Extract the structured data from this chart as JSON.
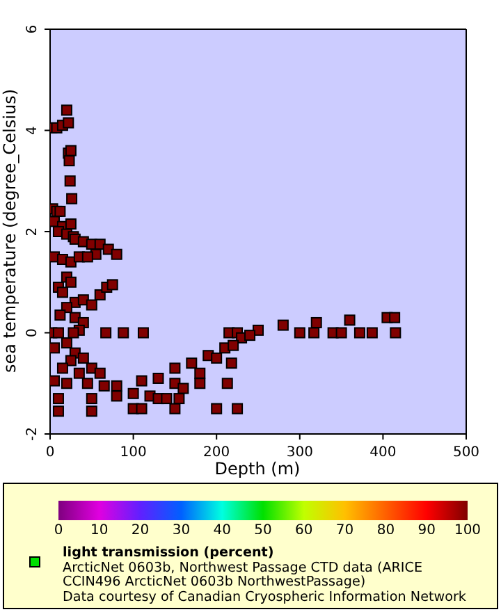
{
  "chart_data": {
    "type": "scatter",
    "xlabel": "Depth (m)",
    "ylabel": "sea temperature (degree_Celsius)",
    "clabel": "light transmission (percent)",
    "annotations": [
      "ArcticNet 0603b, Northwest Passage CTD data (ARICE",
      "CCIN496 ArcticNet 0603b NorthwestPassage)",
      "Data courtesy of Canadian Cryospheric Information Network"
    ],
    "xlim": [
      0,
      500
    ],
    "xticks": [
      0,
      100,
      200,
      300,
      400,
      500
    ],
    "ylim": [
      -2,
      6
    ],
    "yticks": [
      -2,
      0,
      2,
      4,
      6
    ],
    "clim": [
      0,
      100
    ],
    "cticks": [
      0,
      10,
      20,
      30,
      40,
      50,
      60,
      70,
      80,
      90,
      100
    ],
    "marker": "square",
    "x": [
      2,
      8,
      15,
      20,
      22,
      22,
      25,
      23,
      24,
      26,
      3,
      8,
      12,
      5,
      15,
      25,
      10,
      20,
      28,
      30,
      40,
      50,
      60,
      70,
      80,
      55,
      5,
      15,
      25,
      35,
      45,
      30,
      40,
      50,
      60,
      68,
      75,
      10,
      20,
      25,
      15,
      30,
      20,
      40,
      12,
      35,
      28,
      2,
      10,
      67,
      88,
      112,
      215,
      225,
      300,
      317,
      340,
      350,
      372,
      387,
      415,
      5,
      20,
      30,
      25,
      40,
      15,
      35,
      50,
      60,
      45,
      20,
      5,
      65,
      10,
      50,
      100,
      150,
      200,
      225,
      110,
      10,
      50,
      80,
      120,
      155,
      130,
      100,
      150,
      180,
      213,
      80,
      110,
      130,
      150,
      170,
      190,
      210,
      230,
      250,
      280,
      320,
      360,
      405,
      414,
      140,
      160,
      180,
      200,
      218,
      220,
      240
    ],
    "values": [
      4.05,
      4.05,
      4.1,
      4.4,
      4.15,
      3.55,
      3.6,
      3.4,
      3.0,
      2.65,
      2.45,
      2.4,
      2.4,
      2.2,
      2.1,
      2.15,
      2.0,
      1.95,
      1.9,
      1.85,
      1.8,
      1.75,
      1.75,
      1.65,
      1.55,
      1.55,
      1.5,
      1.45,
      1.4,
      1.5,
      1.5,
      0.6,
      0.65,
      0.55,
      0.75,
      0.9,
      0.95,
      0.9,
      1.1,
      1.0,
      0.8,
      0.3,
      0.5,
      0.2,
      0.35,
      0.05,
      0.0,
      0,
      0,
      0,
      0,
      0,
      0,
      0,
      0,
      0,
      0,
      0,
      0,
      0,
      0,
      -0.3,
      -0.2,
      -0.4,
      -0.55,
      -0.5,
      -0.7,
      -0.8,
      -0.7,
      -0.8,
      -1.0,
      -1.0,
      -0.95,
      -1.05,
      -1.55,
      -1.55,
      -1.5,
      -1.5,
      -1.5,
      -1.5,
      -1.5,
      -1.3,
      -1.3,
      -1.25,
      -1.25,
      -1.3,
      -1.3,
      -1.2,
      -1.0,
      -1.0,
      -1.0,
      -1.05,
      -0.95,
      -0.9,
      -0.7,
      -0.6,
      -0.45,
      -0.3,
      -0.1,
      0.05,
      0.15,
      0.2,
      0.25,
      0.3,
      0.3,
      -1.3,
      -1.1,
      -0.8,
      -0.5,
      -0.6,
      -0.25,
      -0.05
    ],
    "cvalues": [
      100,
      100,
      100,
      100,
      100,
      100,
      100,
      100,
      100,
      100,
      100,
      100,
      100,
      100,
      100,
      100,
      100,
      100,
      100,
      100,
      100,
      100,
      100,
      100,
      100,
      100,
      100,
      100,
      100,
      100,
      100,
      100,
      100,
      100,
      100,
      100,
      100,
      100,
      100,
      100,
      100,
      100,
      100,
      100,
      100,
      100,
      100,
      100,
      100,
      100,
      100,
      100,
      100,
      100,
      100,
      100,
      100,
      100,
      100,
      100,
      100,
      100,
      100,
      100,
      100,
      100,
      100,
      100,
      100,
      100,
      100,
      100,
      100,
      100,
      100,
      100,
      100,
      100,
      100,
      100,
      100,
      100,
      100,
      100,
      100,
      100,
      100,
      100,
      100,
      100,
      100,
      100,
      100,
      100,
      100,
      100,
      100,
      100,
      100,
      100,
      100,
      100,
      100,
      100,
      100,
      100,
      100,
      100,
      100,
      100,
      100,
      100
    ]
  }
}
